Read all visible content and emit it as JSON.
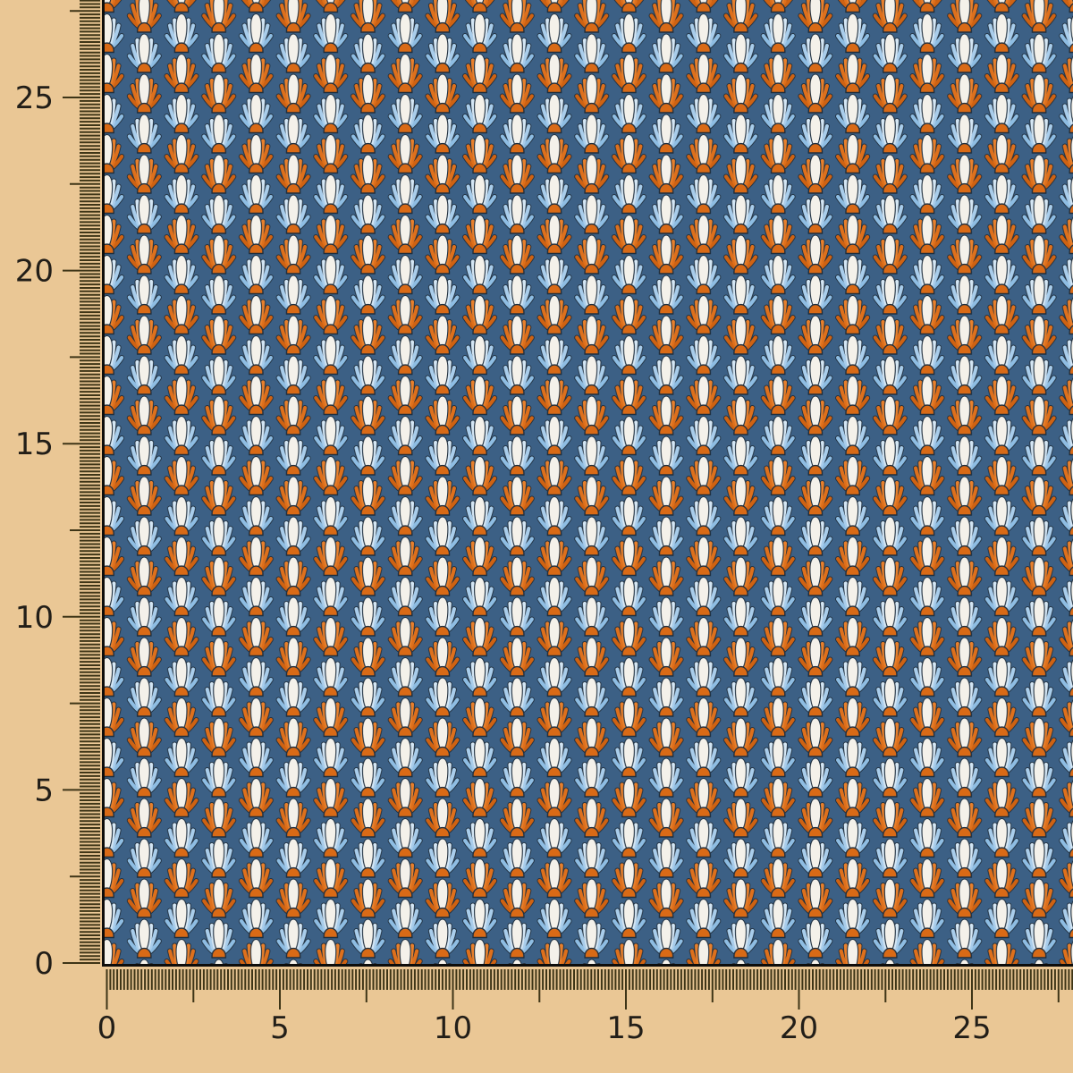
{
  "scene": {
    "kind": "fabric-swatch-with-ruler"
  },
  "ruler": {
    "background_color": "#eac795",
    "tick_color": "#3e3517",
    "label_color": "#221e18",
    "left_labels": [
      {
        "text": "25",
        "cm": 25
      },
      {
        "text": "20",
        "cm": 20
      },
      {
        "text": "15",
        "cm": 15
      },
      {
        "text": "10",
        "cm": 10
      },
      {
        "text": "5",
        "cm": 5
      },
      {
        "text": "0",
        "cm": 0
      }
    ],
    "bottom_labels": [
      {
        "text": "0",
        "cm": 0
      },
      {
        "text": "5",
        "cm": 5
      },
      {
        "text": "10",
        "cm": 10
      },
      {
        "text": "15",
        "cm": 15
      },
      {
        "text": "20",
        "cm": 20
      },
      {
        "text": "25",
        "cm": 25
      }
    ]
  },
  "fabric": {
    "pattern_motif": "art-deco-fan",
    "colors": {
      "background": "#3c6085",
      "orange_outer": "#cf6212",
      "orange_mid": "#de701c",
      "orange_inner": "#e8802c",
      "blue_outer": "#8ebde3",
      "blue_mid": "#a9cdeb",
      "blue_inner": "#d4e6f4",
      "dome_orange": "#d96a16",
      "petal_white": "#f4f1ea",
      "outline_dark": "#1f2e3d",
      "edge_border": "#0e0d0b"
    }
  }
}
